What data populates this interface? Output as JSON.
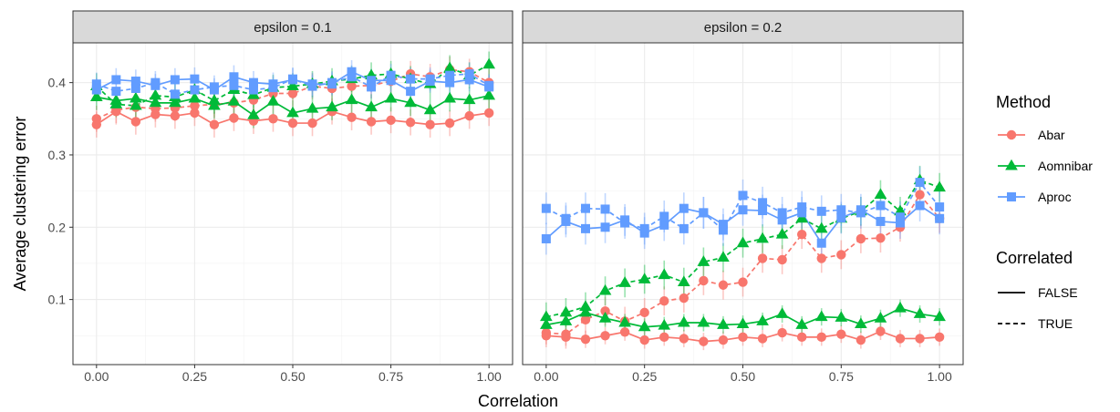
{
  "chart_data": {
    "type": "line",
    "xlabel": "Correlation",
    "ylabel": "Average clustering error",
    "xlim": [
      -0.06,
      1.06
    ],
    "ylim": [
      0.01,
      0.455
    ],
    "x_ticks": [
      0,
      0.25,
      0.5,
      0.75,
      1
    ],
    "x_tick_labels": [
      "0.00",
      "0.25",
      "0.50",
      "0.75",
      "1.00"
    ],
    "y_ticks": [
      0.1,
      0.2,
      0.3,
      0.4
    ],
    "y_tick_labels": [
      "0.1",
      "0.2",
      "0.3",
      "0.4"
    ],
    "grid": true,
    "legend_position": "right",
    "x": [
      0,
      0.05,
      0.1,
      0.15,
      0.2,
      0.25,
      0.3,
      0.35,
      0.4,
      0.45,
      0.5,
      0.55,
      0.6,
      0.65,
      0.7,
      0.75,
      0.8,
      0.85,
      0.9,
      0.95,
      1.0
    ],
    "colors": {
      "Abar": "#F8766D",
      "Aomnibar": "#00BA38",
      "Aproc": "#619CFF"
    },
    "legend": {
      "method_title": "Method",
      "methods": [
        {
          "name": "Abar",
          "shape": "circle"
        },
        {
          "name": "Aomnibar",
          "shape": "triangle"
        },
        {
          "name": "Aproc",
          "shape": "square"
        }
      ],
      "correlated_title": "Correlated",
      "linetypes": [
        {
          "name": "FALSE",
          "dash": "solid"
        },
        {
          "name": "TRUE",
          "dash": "dashed"
        }
      ]
    },
    "panels": [
      {
        "strip": "epsilon = 0.1",
        "series": [
          {
            "method": "Abar",
            "correlated": "FALSE",
            "values": [
              0.342,
              0.36,
              0.346,
              0.356,
              0.354,
              0.358,
              0.342,
              0.351,
              0.347,
              0.35,
              0.344,
              0.344,
              0.36,
              0.352,
              0.346,
              0.348,
              0.345,
              0.342,
              0.344,
              0.354,
              0.358
            ],
            "err": 0.018
          },
          {
            "method": "Abar",
            "correlated": "TRUE",
            "values": [
              0.35,
              0.362,
              0.366,
              0.364,
              0.365,
              0.368,
              0.37,
              0.372,
              0.376,
              0.385,
              0.385,
              0.395,
              0.392,
              0.395,
              0.396,
              0.402,
              0.412,
              0.408,
              0.418,
              0.415,
              0.4
            ],
            "err": 0.018
          },
          {
            "method": "Aomnibar",
            "correlated": "FALSE",
            "values": [
              0.38,
              0.375,
              0.378,
              0.372,
              0.372,
              0.378,
              0.368,
              0.374,
              0.355,
              0.374,
              0.358,
              0.364,
              0.366,
              0.376,
              0.366,
              0.378,
              0.372,
              0.362,
              0.378,
              0.376,
              0.382
            ],
            "err": 0.018
          },
          {
            "method": "Aomnibar",
            "correlated": "TRUE",
            "values": [
              0.395,
              0.37,
              0.368,
              0.382,
              0.38,
              0.39,
              0.375,
              0.39,
              0.383,
              0.393,
              0.395,
              0.398,
              0.402,
              0.405,
              0.41,
              0.412,
              0.405,
              0.398,
              0.42,
              0.41,
              0.425
            ],
            "err": 0.018
          },
          {
            "method": "Aproc",
            "correlated": "FALSE",
            "values": [
              0.39,
              0.404,
              0.402,
              0.396,
              0.404,
              0.405,
              0.39,
              0.408,
              0.4,
              0.398,
              0.404,
              0.398,
              0.398,
              0.415,
              0.403,
              0.403,
              0.388,
              0.402,
              0.4,
              0.404,
              0.394
            ],
            "err": 0.016
          },
          {
            "method": "Aproc",
            "correlated": "TRUE",
            "values": [
              0.398,
              0.388,
              0.392,
              0.4,
              0.384,
              0.39,
              0.394,
              0.396,
              0.39,
              0.393,
              0.405,
              0.395,
              0.4,
              0.408,
              0.394,
              0.41,
              0.405,
              0.405,
              0.41,
              0.412,
              0.396
            ],
            "err": 0.016
          }
        ]
      },
      {
        "strip": "epsilon = 0.2",
        "series": [
          {
            "method": "Abar",
            "correlated": "FALSE",
            "values": [
              0.05,
              0.048,
              0.045,
              0.05,
              0.055,
              0.044,
              0.048,
              0.046,
              0.042,
              0.044,
              0.048,
              0.046,
              0.054,
              0.048,
              0.048,
              0.052,
              0.044,
              0.056,
              0.046,
              0.046,
              0.048
            ],
            "err": 0.012
          },
          {
            "method": "Abar",
            "correlated": "TRUE",
            "values": [
              0.054,
              0.052,
              0.072,
              0.084,
              0.07,
              0.082,
              0.098,
              0.102,
              0.126,
              0.12,
              0.124,
              0.157,
              0.155,
              0.19,
              0.157,
              0.162,
              0.184,
              0.185,
              0.2,
              0.245,
              0.212
            ],
            "err": 0.02
          },
          {
            "method": "Aomnibar",
            "correlated": "FALSE",
            "values": [
              0.065,
              0.07,
              0.082,
              0.074,
              0.068,
              0.062,
              0.064,
              0.068,
              0.068,
              0.065,
              0.066,
              0.07,
              0.08,
              0.065,
              0.076,
              0.075,
              0.066,
              0.074,
              0.088,
              0.08,
              0.076
            ],
            "err": 0.012
          },
          {
            "method": "Aomnibar",
            "correlated": "TRUE",
            "values": [
              0.076,
              0.082,
              0.09,
              0.112,
              0.123,
              0.128,
              0.134,
              0.124,
              0.152,
              0.158,
              0.178,
              0.184,
              0.19,
              0.212,
              0.198,
              0.212,
              0.222,
              0.245,
              0.222,
              0.265,
              0.255
            ],
            "err": 0.02
          },
          {
            "method": "Aproc",
            "correlated": "FALSE",
            "values": [
              0.184,
              0.208,
              0.198,
              0.2,
              0.21,
              0.192,
              0.203,
              0.226,
              0.22,
              0.204,
              0.224,
              0.223,
              0.21,
              0.22,
              0.178,
              0.213,
              0.224,
              0.208,
              0.206,
              0.23,
              0.212
            ],
            "err": 0.022
          },
          {
            "method": "Aproc",
            "correlated": "TRUE",
            "values": [
              0.226,
              0.212,
              0.226,
              0.225,
              0.206,
              0.198,
              0.215,
              0.198,
              0.22,
              0.196,
              0.244,
              0.234,
              0.22,
              0.228,
              0.222,
              0.224,
              0.22,
              0.23,
              0.214,
              0.262,
              0.228
            ],
            "err": 0.022
          }
        ]
      }
    ]
  }
}
